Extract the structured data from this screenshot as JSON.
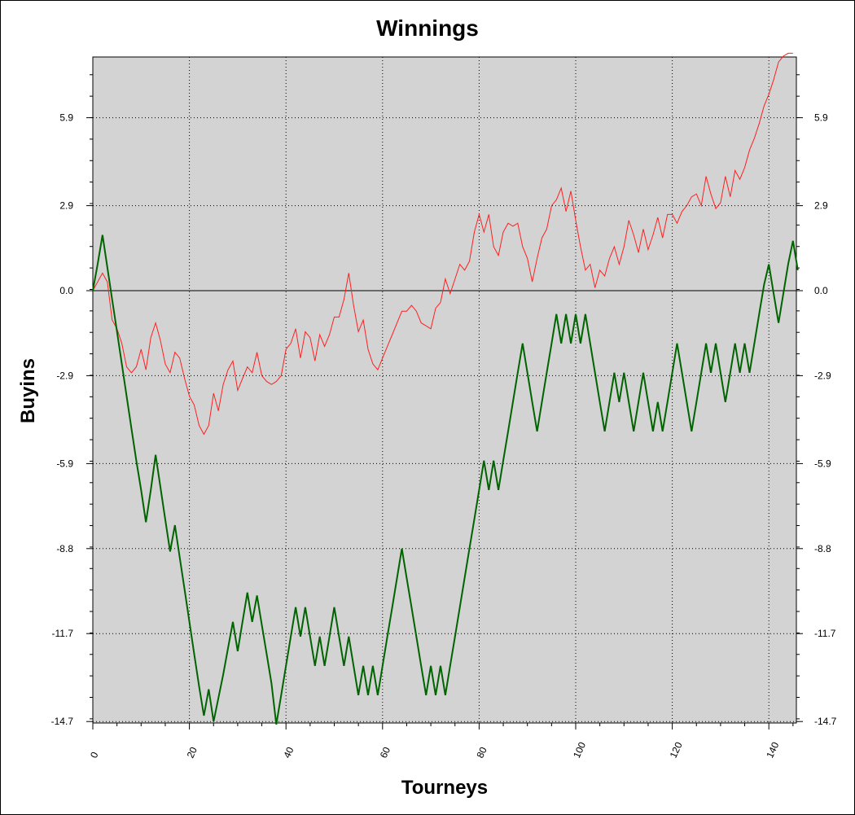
{
  "chart_data": {
    "type": "line",
    "title": "Winnings",
    "xlabel": "Tourneys",
    "ylabel": "Buyins",
    "xlim": [
      0,
      146
    ],
    "ylim": [
      -14.7,
      8.1
    ],
    "x_ticks": [
      "0",
      "20",
      "40",
      "60",
      "80",
      "100",
      "120",
      "140"
    ],
    "y_ticks": [
      "5.9",
      "2.9",
      "0.0",
      "-2.9",
      "-5.9",
      "-8.8",
      "-11.7",
      "-14.7"
    ],
    "grid": true,
    "legend": "none",
    "background": "#d3d3d3",
    "series": [
      {
        "color": "#ff2020",
        "values": [
          0.0,
          0.3,
          0.6,
          0.3,
          -1.0,
          -1.3,
          -1.8,
          -2.6,
          -2.8,
          -2.6,
          -2.0,
          -2.7,
          -1.6,
          -1.1,
          -1.7,
          -2.5,
          -2.8,
          -2.1,
          -2.3,
          -3.0,
          -3.6,
          -3.9,
          -4.6,
          -4.9,
          -4.6,
          -3.5,
          -4.1,
          -3.2,
          -2.7,
          -2.4,
          -3.4,
          -3.0,
          -2.6,
          -2.8,
          -2.1,
          -2.9,
          -3.1,
          -3.2,
          -3.1,
          -2.9,
          -2.0,
          -1.8,
          -1.3,
          -2.3,
          -1.4,
          -1.6,
          -2.4,
          -1.5,
          -1.9,
          -1.5,
          -0.9,
          -0.9,
          -0.3,
          0.6,
          -0.5,
          -1.4,
          -1.0,
          -2.0,
          -2.5,
          -2.7,
          -2.3,
          -1.9,
          -1.5,
          -1.1,
          -0.7,
          -0.7,
          -0.5,
          -0.7,
          -1.1,
          -1.2,
          -1.3,
          -0.6,
          -0.4,
          0.4,
          -0.1,
          0.4,
          0.9,
          0.7,
          1.0,
          2.0,
          2.6,
          2.0,
          2.6,
          1.5,
          1.2,
          2.0,
          2.3,
          2.2,
          2.3,
          1.5,
          1.1,
          0.3,
          1.1,
          1.8,
          2.1,
          2.9,
          3.1,
          3.5,
          2.7,
          3.4,
          2.4,
          1.5,
          0.7,
          0.9,
          0.1,
          0.7,
          0.5,
          1.1,
          1.5,
          0.9,
          1.5,
          2.4,
          1.9,
          1.3,
          2.1,
          1.4,
          1.9,
          2.5,
          1.8,
          2.6,
          2.6,
          2.3,
          2.7,
          2.9,
          3.2,
          3.3,
          2.9,
          3.9,
          3.3,
          2.8,
          3.0,
          3.9,
          3.2,
          4.1,
          3.8,
          4.2,
          4.8,
          5.2,
          5.7,
          6.3,
          6.7,
          7.2,
          7.8,
          8.0,
          8.1,
          8.1
        ]
      },
      {
        "color": "#006400",
        "values": [
          0.0,
          0.9,
          1.9,
          0.8,
          -0.3,
          -1.4,
          -2.5,
          -3.6,
          -4.7,
          -5.8,
          -6.8,
          -7.9,
          -6.8,
          -5.6,
          -6.7,
          -7.8,
          -8.9,
          -8.0,
          -9.1,
          -10.2,
          -11.3,
          -12.4,
          -13.5,
          -14.5,
          -13.6,
          -14.7,
          -13.9,
          -13.1,
          -12.2,
          -11.3,
          -12.3,
          -11.3,
          -10.3,
          -11.3,
          -10.4,
          -11.4,
          -12.4,
          -13.4,
          -14.8,
          -13.8,
          -12.8,
          -11.8,
          -10.8,
          -11.8,
          -10.8,
          -11.8,
          -12.8,
          -11.8,
          -12.8,
          -11.8,
          -10.8,
          -11.8,
          -12.8,
          -11.8,
          -12.8,
          -13.8,
          -12.8,
          -13.8,
          -12.8,
          -13.8,
          -12.8,
          -11.8,
          -10.8,
          -9.8,
          -8.8,
          -9.8,
          -10.8,
          -11.8,
          -12.8,
          -13.8,
          -12.8,
          -13.8,
          -12.8,
          -13.8,
          -12.8,
          -11.8,
          -10.8,
          -9.8,
          -8.8,
          -7.8,
          -6.8,
          -5.8,
          -6.8,
          -5.8,
          -6.8,
          -5.8,
          -4.8,
          -3.8,
          -2.8,
          -1.8,
          -2.8,
          -3.8,
          -4.8,
          -3.8,
          -2.8,
          -1.8,
          -0.8,
          -1.8,
          -0.8,
          -1.8,
          -0.8,
          -1.8,
          -0.8,
          -1.8,
          -2.8,
          -3.8,
          -4.8,
          -3.8,
          -2.8,
          -3.8,
          -2.8,
          -3.8,
          -4.8,
          -3.8,
          -2.8,
          -3.8,
          -4.8,
          -3.8,
          -4.8,
          -3.8,
          -2.8,
          -1.8,
          -2.8,
          -3.8,
          -4.8,
          -3.8,
          -2.8,
          -1.8,
          -2.8,
          -1.8,
          -2.8,
          -3.8,
          -2.8,
          -1.8,
          -2.8,
          -1.8,
          -2.8,
          -1.8,
          -0.8,
          0.2,
          0.9,
          -0.1,
          -1.1,
          -0.1,
          0.9,
          1.7,
          0.7
        ]
      }
    ]
  }
}
